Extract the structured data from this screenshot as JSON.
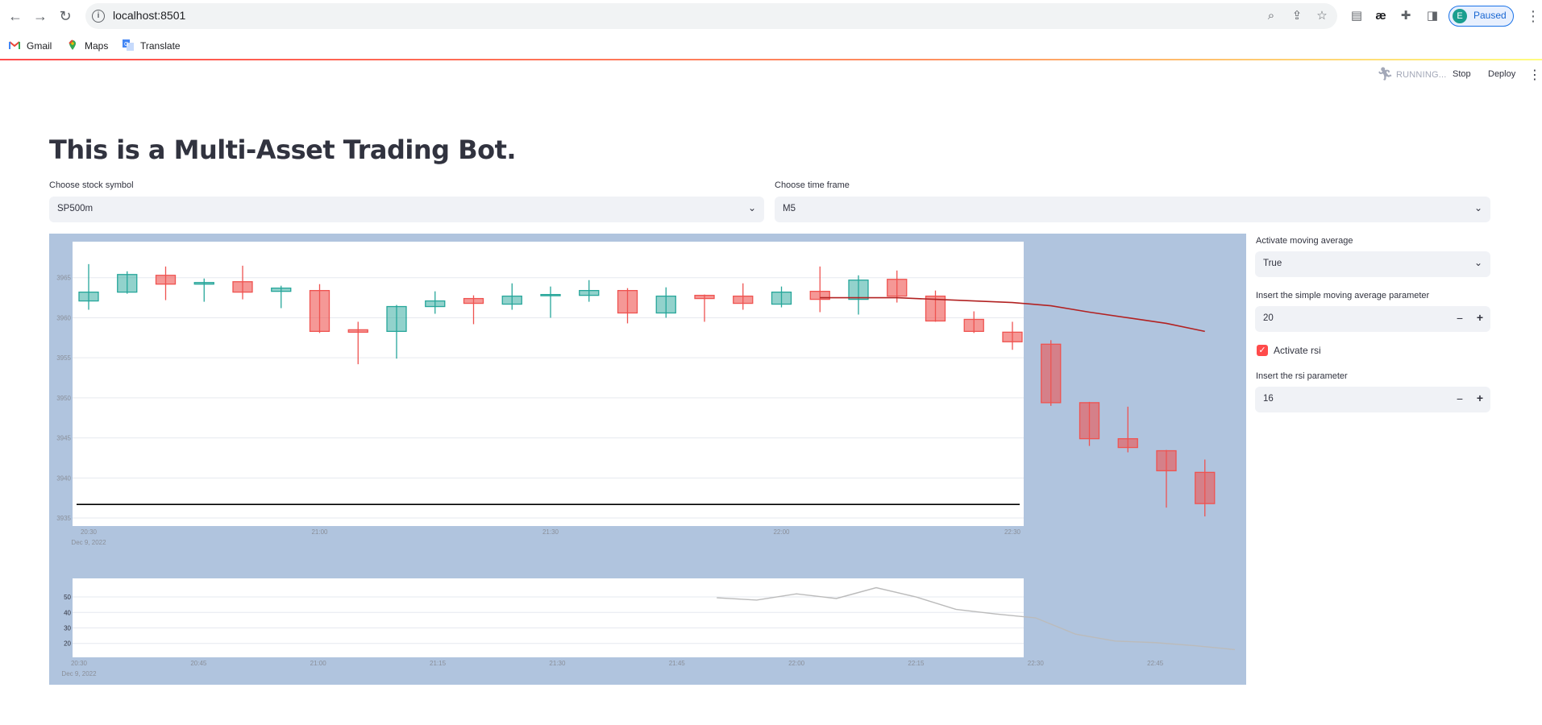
{
  "browser": {
    "url": "localhost:8501",
    "profile_initial": "E",
    "profile_status": "Paused",
    "bookmarks": [
      {
        "label": "Gmail",
        "icon": "gmail-icon"
      },
      {
        "label": "Maps",
        "icon": "maps-icon"
      },
      {
        "label": "Translate",
        "icon": "translate-icon"
      }
    ]
  },
  "app_header": {
    "status": "RUNNING...",
    "stop_label": "Stop",
    "deploy_label": "Deploy"
  },
  "page": {
    "title": "This is a Multi-Asset Trading Bot.",
    "symbol_label": "Choose stock symbol",
    "symbol_value": "SP500m",
    "timeframe_label": "Choose time frame",
    "timeframe_value": "M5"
  },
  "sidebar_controls": {
    "ma_label": "Activate moving average",
    "ma_value": "True",
    "sma_param_label": "Insert the simple moving average parameter",
    "sma_param_value": "20",
    "rsi_checkbox_label": "Activate rsi",
    "rsi_checked": true,
    "rsi_param_label": "Insert the rsi parameter",
    "rsi_param_value": "16"
  },
  "colors": {
    "increasing": "#26a69a",
    "decreasing": "#ef5350",
    "sma_line": "#b22222",
    "rsi_line": "#bbbbbb",
    "hline": "#000000",
    "panel_bg": "#b0c4de"
  },
  "chart_data": [
    {
      "type": "candlestick",
      "title": "",
      "x_ticks": [
        "20:30",
        "21:00",
        "21:30",
        "22:00",
        "22:30"
      ],
      "x_date_label": "Dec 9, 2022",
      "y_ticks": [
        3935,
        3940,
        3945,
        3950,
        3955,
        3960,
        3965
      ],
      "ylim": [
        3934,
        3969.5
      ],
      "horizontal_line": 3936.7,
      "candles": [
        {
          "time": "20:30",
          "open": 3962.1,
          "high": 3966.7,
          "low": 3961.0,
          "close": 3963.2
        },
        {
          "time": "20:35",
          "open": 3963.2,
          "high": 3965.8,
          "low": 3963.0,
          "close": 3965.4
        },
        {
          "time": "20:40",
          "open": 3965.3,
          "high": 3966.4,
          "low": 3962.2,
          "close": 3964.2
        },
        {
          "time": "20:45",
          "open": 3964.2,
          "high": 3964.9,
          "low": 3962.0,
          "close": 3964.4
        },
        {
          "time": "20:50",
          "open": 3964.5,
          "high": 3966.5,
          "low": 3962.3,
          "close": 3963.2
        },
        {
          "time": "20:55",
          "open": 3963.3,
          "high": 3964.0,
          "low": 3961.2,
          "close": 3963.7
        },
        {
          "time": "21:00",
          "open": 3963.4,
          "high": 3964.2,
          "low": 3958.1,
          "close": 3958.3
        },
        {
          "time": "21:05",
          "open": 3958.5,
          "high": 3959.5,
          "low": 3954.2,
          "close": 3958.2
        },
        {
          "time": "21:10",
          "open": 3958.3,
          "high": 3961.6,
          "low": 3954.9,
          "close": 3961.4
        },
        {
          "time": "21:15",
          "open": 3961.4,
          "high": 3963.3,
          "low": 3960.5,
          "close": 3962.1
        },
        {
          "time": "21:20",
          "open": 3962.4,
          "high": 3962.8,
          "low": 3959.2,
          "close": 3961.8
        },
        {
          "time": "21:25",
          "open": 3961.7,
          "high": 3964.3,
          "low": 3961.0,
          "close": 3962.7
        },
        {
          "time": "21:30",
          "open": 3962.8,
          "high": 3963.9,
          "low": 3960.0,
          "close": 3962.9
        },
        {
          "time": "21:35",
          "open": 3962.8,
          "high": 3964.7,
          "low": 3962.0,
          "close": 3963.4
        },
        {
          "time": "21:40",
          "open": 3963.4,
          "high": 3963.7,
          "low": 3959.3,
          "close": 3960.6
        },
        {
          "time": "21:45",
          "open": 3960.6,
          "high": 3963.8,
          "low": 3960.0,
          "close": 3962.7
        },
        {
          "time": "21:50",
          "open": 3962.8,
          "high": 3962.9,
          "low": 3959.5,
          "close": 3962.4
        },
        {
          "time": "21:55",
          "open": 3962.7,
          "high": 3964.3,
          "low": 3961.0,
          "close": 3961.8
        },
        {
          "time": "22:00",
          "open": 3961.7,
          "high": 3963.9,
          "low": 3961.3,
          "close": 3963.2
        },
        {
          "time": "22:05",
          "open": 3963.3,
          "high": 3966.4,
          "low": 3960.7,
          "close": 3962.3
        },
        {
          "time": "22:10",
          "open": 3962.3,
          "high": 3965.3,
          "low": 3960.4,
          "close": 3964.7
        },
        {
          "time": "22:15",
          "open": 3964.8,
          "high": 3965.9,
          "low": 3961.9,
          "close": 3962.7
        },
        {
          "time": "22:20",
          "open": 3962.7,
          "high": 3963.4,
          "low": 3959.5,
          "close": 3959.6
        },
        {
          "time": "22:25",
          "open": 3959.8,
          "high": 3960.8,
          "low": 3958.1,
          "close": 3958.3
        },
        {
          "time": "22:30",
          "open": 3958.2,
          "high": 3959.5,
          "low": 3956.0,
          "close": 3957.0
        },
        {
          "time": "22:35",
          "open": 3956.7,
          "high": 3957.2,
          "low": 3949.0,
          "close": 3949.4
        },
        {
          "time": "22:40",
          "open": 3949.4,
          "high": 3949.5,
          "low": 3944.0,
          "close": 3944.9
        },
        {
          "time": "22:45",
          "open": 3944.9,
          "high": 3948.9,
          "low": 3943.2,
          "close": 3943.8
        },
        {
          "time": "22:50",
          "open": 3943.4,
          "high": 3943.5,
          "low": 3936.3,
          "close": 3940.9
        },
        {
          "time": "22:55",
          "open": 3940.7,
          "high": 3942.3,
          "low": 3935.2,
          "close": 3936.8
        }
      ],
      "sma": {
        "times": [
          "22:05",
          "22:15",
          "22:20",
          "22:30",
          "22:35",
          "22:40",
          "22:45",
          "22:50",
          "22:55"
        ],
        "values": [
          3962.5,
          3962.5,
          3962.3,
          3961.9,
          3961.5,
          3960.7,
          3960.0,
          3959.3,
          3958.3
        ]
      }
    },
    {
      "type": "line",
      "title": "",
      "x_ticks": [
        "20:30",
        "20:45",
        "21:00",
        "21:15",
        "21:30",
        "21:45",
        "22:00",
        "22:15",
        "22:30",
        "22:45"
      ],
      "x_date_label": "Dec 9, 2022",
      "y_ticks": [
        20,
        30,
        40,
        50
      ],
      "ylim": [
        11,
        62
      ],
      "series": [
        {
          "times": [
            "21:50",
            "21:55",
            "22:00",
            "22:05",
            "22:10",
            "22:15",
            "22:20",
            "22:25",
            "22:30",
            "22:35",
            "22:40",
            "22:45",
            "22:50",
            "22:55"
          ],
          "values": [
            49.5,
            48.0,
            52.0,
            49.0,
            56.0,
            50.0,
            42.0,
            39.0,
            36.5,
            26.0,
            21.5,
            20.5,
            18.5,
            16.0
          ]
        }
      ]
    }
  ]
}
